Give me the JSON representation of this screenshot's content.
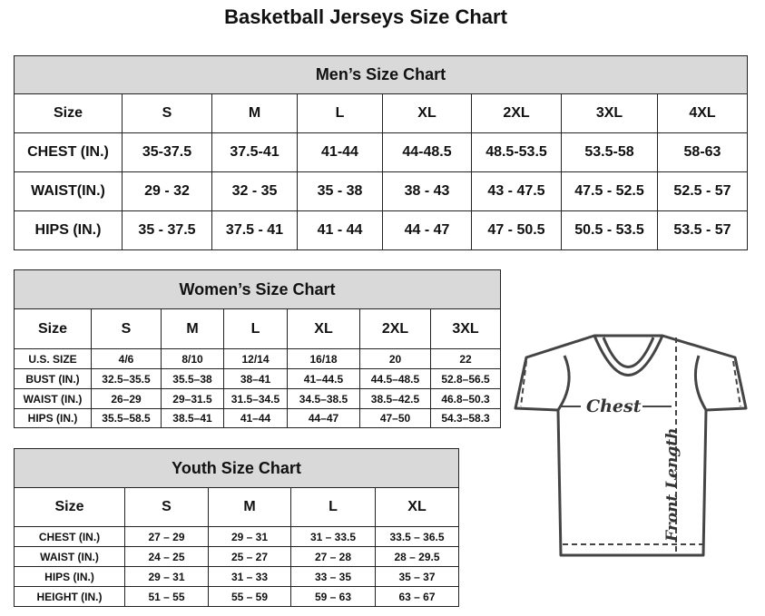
{
  "title": "Basketball Jerseys Size Chart",
  "tables": [
    {
      "id": "men",
      "title": "Men’s Size Chart",
      "header": [
        "Size",
        "S",
        "M",
        "L",
        "XL",
        "2XL",
        "3XL",
        "4XL"
      ],
      "rows": [
        [
          "CHEST (IN.)",
          "35-37.5",
          "37.5-41",
          "41-44",
          "44-48.5",
          "48.5-53.5",
          "53.5-58",
          "58-63"
        ],
        [
          "WAIST(IN.)",
          "29 - 32",
          "32 - 35",
          "35 - 38",
          "38 - 43",
          "43 - 47.5",
          "47.5 - 52.5",
          "52.5 - 57"
        ],
        [
          "HIPS (IN.)",
          "35 - 37.5",
          "37.5 - 41",
          "41 - 44",
          "44 - 47",
          "47 - 50.5",
          "50.5 - 53.5",
          "53.5 - 57"
        ]
      ]
    },
    {
      "id": "women",
      "title": "Women’s Size Chart",
      "header": [
        "Size",
        "S",
        "M",
        "L",
        "XL",
        "2XL",
        "3XL"
      ],
      "rows": [
        [
          "U.S. SIZE",
          "4/6",
          "8/10",
          "12/14",
          "16/18",
          "20",
          "22"
        ],
        [
          "BUST (IN.)",
          "32.5–35.5",
          "35.5–38",
          "38–41",
          "41–44.5",
          "44.5–48.5",
          "52.8–56.5"
        ],
        [
          "WAIST (IN.)",
          "26–29",
          "29–31.5",
          "31.5–34.5",
          "34.5–38.5",
          "38.5–42.5",
          "46.8–50.3"
        ],
        [
          "HIPS (IN.)",
          "35.5–58.5",
          "38.5–41",
          "41–44",
          "44–47",
          "47–50",
          "54.3–58.3"
        ]
      ]
    },
    {
      "id": "youth",
      "title": "Youth Size Chart",
      "header": [
        "Size",
        "S",
        "M",
        "L",
        "XL"
      ],
      "rows": [
        [
          "CHEST (IN.)",
          "27 – 29",
          "29 – 31",
          "31 – 33.5",
          "33.5 – 36.5"
        ],
        [
          "WAIST (IN.)",
          "24 – 25",
          "25 – 27",
          "27 – 28",
          "28 – 29.5"
        ],
        [
          "HIPS (IN.)",
          "29 – 31",
          "31 – 33",
          "33 – 35",
          "35 – 37"
        ],
        [
          "HEIGHT (IN.)",
          "51 – 55",
          "55 – 59",
          "59 – 63",
          "63 – 67"
        ]
      ]
    }
  ],
  "diagram": {
    "chest_label": "Chest",
    "length_label": "Front Length"
  }
}
